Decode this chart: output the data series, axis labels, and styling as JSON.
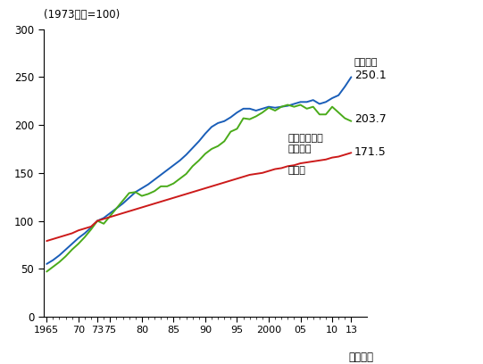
{
  "title_label": "(1973年度=100)",
  "xlabel": "（年度）",
  "ylim": [
    0,
    300
  ],
  "xlim_left": 1964.5,
  "xlim_right": 2015.5,
  "yticks": [
    0,
    50,
    100,
    150,
    200,
    250,
    300
  ],
  "xtick_positions": [
    1965,
    1970,
    1973,
    1975,
    1980,
    1985,
    1990,
    1995,
    2000,
    2005,
    2010,
    2013
  ],
  "xtick_labels": [
    "1965",
    "70",
    "73",
    "75",
    "80",
    "85",
    "90",
    "95",
    "2000",
    "05",
    "10",
    "13"
  ],
  "color_blue": "#1a5eb8",
  "color_green": "#4aab1a",
  "color_red": "#cc1a1a",
  "label_kojin": "個人消費",
  "label_katei": "家庭用エネル\nギー消費",
  "label_setai": "世帯数",
  "val_kojin": "250.1",
  "val_katei": "203.7",
  "val_setai": "171.5",
  "personal_consumption": [
    [
      1965,
      55
    ],
    [
      1966,
      59
    ],
    [
      1967,
      64
    ],
    [
      1968,
      70
    ],
    [
      1969,
      76
    ],
    [
      1970,
      82
    ],
    [
      1971,
      87
    ],
    [
      1972,
      93
    ],
    [
      1973,
      100
    ],
    [
      1974,
      103
    ],
    [
      1975,
      108
    ],
    [
      1976,
      113
    ],
    [
      1977,
      118
    ],
    [
      1978,
      124
    ],
    [
      1979,
      130
    ],
    [
      1980,
      134
    ],
    [
      1981,
      138
    ],
    [
      1982,
      143
    ],
    [
      1983,
      148
    ],
    [
      1984,
      153
    ],
    [
      1985,
      158
    ],
    [
      1986,
      163
    ],
    [
      1987,
      169
    ],
    [
      1988,
      176
    ],
    [
      1989,
      183
    ],
    [
      1990,
      191
    ],
    [
      1991,
      198
    ],
    [
      1992,
      202
    ],
    [
      1993,
      204
    ],
    [
      1994,
      208
    ],
    [
      1995,
      213
    ],
    [
      1996,
      217
    ],
    [
      1997,
      217
    ],
    [
      1998,
      215
    ],
    [
      1999,
      217
    ],
    [
      2000,
      219
    ],
    [
      2001,
      218
    ],
    [
      2002,
      219
    ],
    [
      2003,
      220
    ],
    [
      2004,
      222
    ],
    [
      2005,
      224
    ],
    [
      2006,
      224
    ],
    [
      2007,
      226
    ],
    [
      2008,
      222
    ],
    [
      2009,
      224
    ],
    [
      2010,
      228
    ],
    [
      2011,
      231
    ],
    [
      2012,
      240
    ],
    [
      2013,
      250
    ]
  ],
  "household_energy": [
    [
      1965,
      47
    ],
    [
      1966,
      52
    ],
    [
      1967,
      57
    ],
    [
      1968,
      63
    ],
    [
      1969,
      70
    ],
    [
      1970,
      76
    ],
    [
      1971,
      83
    ],
    [
      1972,
      91
    ],
    [
      1973,
      100
    ],
    [
      1974,
      97
    ],
    [
      1975,
      105
    ],
    [
      1976,
      113
    ],
    [
      1977,
      121
    ],
    [
      1978,
      129
    ],
    [
      1979,
      130
    ],
    [
      1980,
      126
    ],
    [
      1981,
      128
    ],
    [
      1982,
      131
    ],
    [
      1983,
      136
    ],
    [
      1984,
      136
    ],
    [
      1985,
      139
    ],
    [
      1986,
      144
    ],
    [
      1987,
      149
    ],
    [
      1988,
      157
    ],
    [
      1989,
      163
    ],
    [
      1990,
      170
    ],
    [
      1991,
      175
    ],
    [
      1992,
      178
    ],
    [
      1993,
      183
    ],
    [
      1994,
      193
    ],
    [
      1995,
      196
    ],
    [
      1996,
      207
    ],
    [
      1997,
      206
    ],
    [
      1998,
      209
    ],
    [
      1999,
      213
    ],
    [
      2000,
      218
    ],
    [
      2001,
      215
    ],
    [
      2002,
      219
    ],
    [
      2003,
      221
    ],
    [
      2004,
      219
    ],
    [
      2005,
      221
    ],
    [
      2006,
      217
    ],
    [
      2007,
      219
    ],
    [
      2008,
      211
    ],
    [
      2009,
      211
    ],
    [
      2010,
      219
    ],
    [
      2011,
      213
    ],
    [
      2012,
      207
    ],
    [
      2013,
      204
    ]
  ],
  "households": [
    [
      1965,
      79
    ],
    [
      1966,
      81
    ],
    [
      1967,
      83
    ],
    [
      1968,
      85
    ],
    [
      1969,
      87
    ],
    [
      1970,
      90
    ],
    [
      1971,
      92
    ],
    [
      1972,
      94
    ],
    [
      1973,
      100
    ],
    [
      1974,
      102
    ],
    [
      1975,
      104
    ],
    [
      1976,
      106
    ],
    [
      1977,
      108
    ],
    [
      1978,
      110
    ],
    [
      1979,
      112
    ],
    [
      1980,
      114
    ],
    [
      1981,
      116
    ],
    [
      1982,
      118
    ],
    [
      1983,
      120
    ],
    [
      1984,
      122
    ],
    [
      1985,
      124
    ],
    [
      1986,
      126
    ],
    [
      1987,
      128
    ],
    [
      1988,
      130
    ],
    [
      1989,
      132
    ],
    [
      1990,
      134
    ],
    [
      1991,
      136
    ],
    [
      1992,
      138
    ],
    [
      1993,
      140
    ],
    [
      1994,
      142
    ],
    [
      1995,
      144
    ],
    [
      1996,
      146
    ],
    [
      1997,
      148
    ],
    [
      1998,
      149
    ],
    [
      1999,
      150
    ],
    [
      2000,
      152
    ],
    [
      2001,
      154
    ],
    [
      2002,
      155
    ],
    [
      2003,
      157
    ],
    [
      2004,
      158
    ],
    [
      2005,
      160
    ],
    [
      2006,
      161
    ],
    [
      2007,
      162
    ],
    [
      2008,
      163
    ],
    [
      2009,
      164
    ],
    [
      2010,
      166
    ],
    [
      2011,
      167
    ],
    [
      2012,
      169
    ],
    [
      2013,
      171
    ]
  ]
}
